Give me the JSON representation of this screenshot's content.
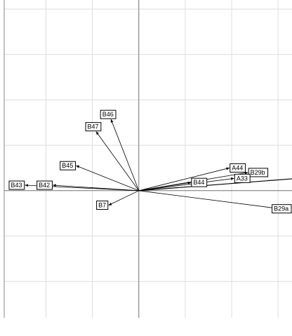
{
  "chart_data": {
    "type": "scatter",
    "subtype": "biplot-vectors",
    "title": "",
    "xlabel": "",
    "ylabel": "",
    "grid": true,
    "legend": "none",
    "xlim": [
      -2.9,
      3.3
    ],
    "ylim": [
      -2.8,
      4.2
    ],
    "vectors": [
      {
        "label": "B43",
        "x": -2.45,
        "y": 0.12
      },
      {
        "label": "B42",
        "x": -1.85,
        "y": 0.12
      },
      {
        "label": "B45",
        "x": -1.35,
        "y": 0.55
      },
      {
        "label": "B47",
        "x": -0.92,
        "y": 1.3
      },
      {
        "label": "B46",
        "x": -0.6,
        "y": 1.57
      },
      {
        "label": "B7",
        "x": -0.65,
        "y": -0.32
      },
      {
        "label": "A44",
        "x": 1.95,
        "y": 0.5
      },
      {
        "label": "B29b",
        "x": 2.35,
        "y": 0.4
      },
      {
        "label": "A33",
        "x": 2.05,
        "y": 0.27
      },
      {
        "label": "B44",
        "x": 1.12,
        "y": 0.18
      },
      {
        "label": "B29a",
        "x": 3.05,
        "y": -0.4
      }
    ],
    "offscreen_vectors": [
      {
        "x": 3.55,
        "y": 0.28
      }
    ]
  },
  "colors": {
    "grid": "#dedede",
    "axes": "#707070",
    "arrows": "#000000",
    "labels": "#000000"
  }
}
